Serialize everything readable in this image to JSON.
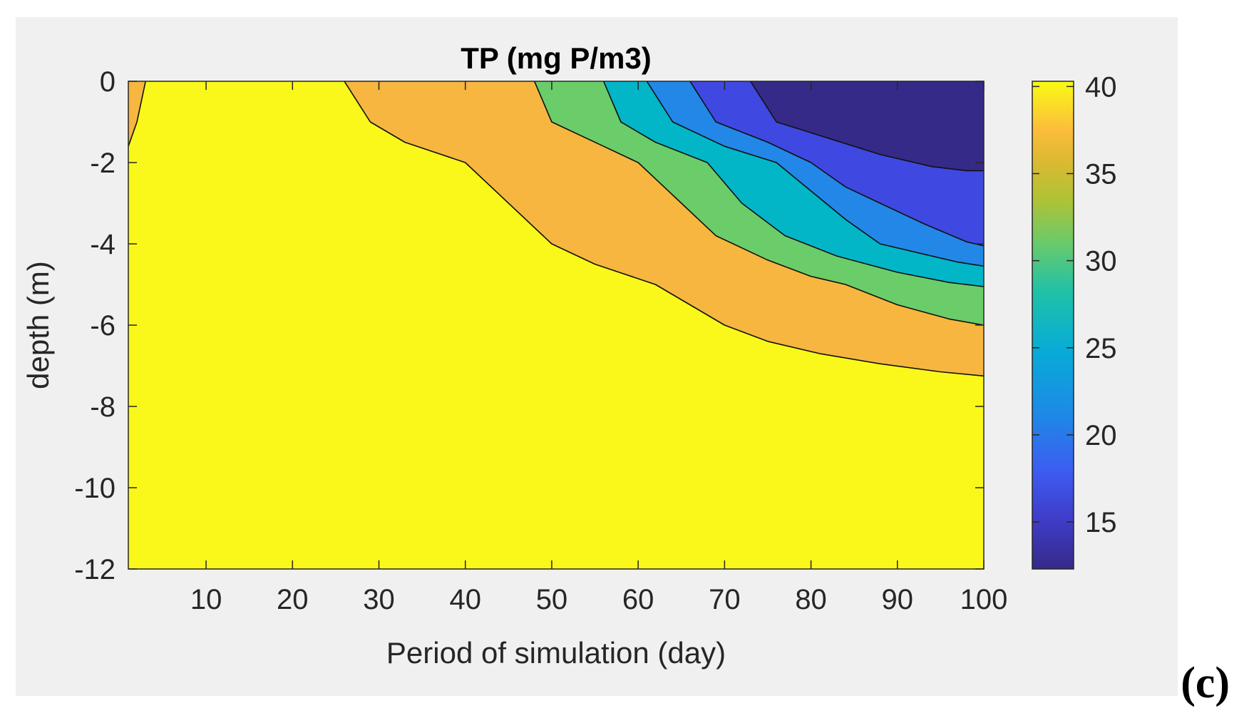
{
  "panel": {
    "label": "(c)",
    "background": "#f0f0f0"
  },
  "chart_data": {
    "type": "contourf",
    "title": "TP (mg P/m3)",
    "xlabel": "Period of simulation (day)",
    "ylabel": "depth (m)",
    "xlim": [
      1,
      100
    ],
    "ylim": [
      -12,
      0
    ],
    "xticks": [
      10,
      20,
      30,
      40,
      50,
      60,
      70,
      80,
      90,
      100
    ],
    "yticks": [
      0,
      -2,
      -4,
      -6,
      -8,
      -10,
      -12
    ],
    "colorbar": {
      "limits": [
        12.3,
        40.3
      ],
      "ticks": [
        40,
        35,
        30,
        25,
        20,
        15
      ],
      "colormap": "parula"
    },
    "levels": [
      {
        "range": "<= 16",
        "color": "#352a87"
      },
      {
        "range": "16-20",
        "color": "#3f48e0"
      },
      {
        "range": "20-24",
        "color": "#2387e8"
      },
      {
        "range": "24-28",
        "color": "#02b6c8"
      },
      {
        "range": "28-32",
        "color": "#6acd6a"
      },
      {
        "range": "32-36",
        "color": "#f6b63f"
      },
      {
        "range": ">= 36",
        "color": "#f9f81a"
      }
    ],
    "contours": [
      {
        "value": 36,
        "fill": "#f6b63f",
        "points": [
          [
            1,
            -1.6
          ],
          [
            2,
            -1
          ],
          [
            3,
            0
          ]
        ],
        "closing": "left"
      },
      {
        "value": 36,
        "fill": "#f6b63f",
        "points": [
          [
            26,
            0
          ],
          [
            29,
            -1
          ],
          [
            33,
            -1.5
          ],
          [
            40,
            -2
          ],
          [
            50,
            -4
          ],
          [
            55,
            -4.5
          ],
          [
            62,
            -5
          ],
          [
            70,
            -6
          ],
          [
            75,
            -6.4
          ],
          [
            81,
            -6.7
          ],
          [
            88,
            -6.95
          ],
          [
            95,
            -7.15
          ],
          [
            100,
            -7.25
          ]
        ],
        "closing": "right"
      },
      {
        "value": 32,
        "fill": "#6acd6a",
        "points": [
          [
            48,
            0
          ],
          [
            50,
            -1
          ],
          [
            56,
            -1.6
          ],
          [
            60,
            -2
          ],
          [
            65,
            -3
          ],
          [
            69,
            -3.8
          ],
          [
            75,
            -4.4
          ],
          [
            80,
            -4.8
          ],
          [
            84,
            -5
          ],
          [
            90,
            -5.5
          ],
          [
            96,
            -5.85
          ],
          [
            100,
            -6
          ]
        ],
        "closing": "right"
      },
      {
        "value": 28,
        "fill": "#02b6c8",
        "points": [
          [
            56,
            0
          ],
          [
            58,
            -1
          ],
          [
            62,
            -1.5
          ],
          [
            68,
            -2
          ],
          [
            72,
            -3
          ],
          [
            77,
            -3.8
          ],
          [
            83,
            -4.3
          ],
          [
            90,
            -4.7
          ],
          [
            96,
            -4.95
          ],
          [
            100,
            -5.05
          ]
        ],
        "closing": "right"
      },
      {
        "value": 24,
        "fill": "#2387e8",
        "points": [
          [
            61,
            0
          ],
          [
            64,
            -1
          ],
          [
            70,
            -1.6
          ],
          [
            76,
            -2
          ],
          [
            80,
            -2.7
          ],
          [
            84,
            -3.4
          ],
          [
            88,
            -4
          ],
          [
            93,
            -4.25
          ],
          [
            97,
            -4.45
          ],
          [
            100,
            -4.55
          ]
        ],
        "closing": "right"
      },
      {
        "value": 20,
        "fill": "#3f48e0",
        "points": [
          [
            66,
            0
          ],
          [
            69,
            -1
          ],
          [
            75,
            -1.5
          ],
          [
            80,
            -2
          ],
          [
            84,
            -2.6
          ],
          [
            88,
            -3
          ],
          [
            93,
            -3.5
          ],
          [
            98,
            -3.95
          ],
          [
            100,
            -4.05
          ]
        ],
        "closing": "right"
      },
      {
        "value": 16,
        "fill": "#352a87",
        "points": [
          [
            73,
            0
          ],
          [
            76,
            -1
          ],
          [
            82,
            -1.4
          ],
          [
            88,
            -1.8
          ],
          [
            94,
            -2.1
          ],
          [
            98,
            -2.2
          ],
          [
            100,
            -2.2
          ]
        ],
        "closing": "right"
      }
    ]
  }
}
